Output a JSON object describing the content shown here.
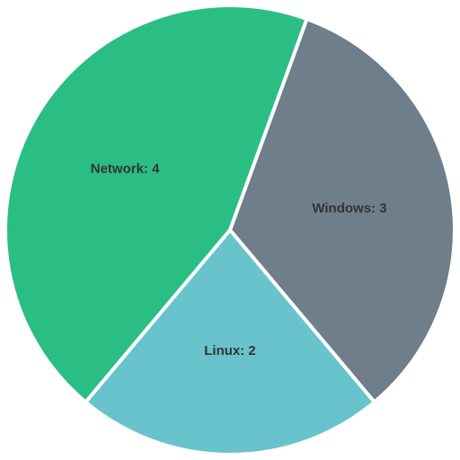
{
  "chart_data": {
    "type": "pie",
    "slices": [
      {
        "label": "Windows",
        "value": 3,
        "color": "#6e7f8b",
        "display": "Windows: 3"
      },
      {
        "label": "Linux",
        "value": 2,
        "color": "#68c3cc",
        "display": "Linux: 2"
      },
      {
        "label": "Network",
        "value": 4,
        "color": "#2abe84",
        "display": "Network: 4"
      }
    ],
    "start_angle_deg": -70,
    "direction": "clockwise",
    "legend": "none"
  }
}
